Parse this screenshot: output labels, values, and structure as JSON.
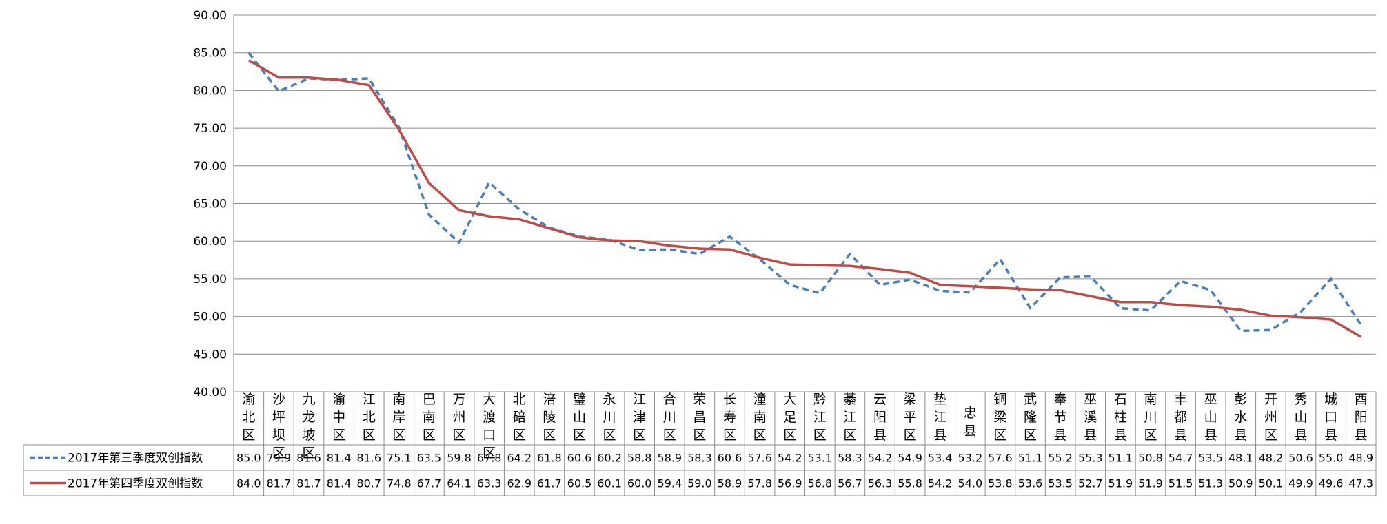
{
  "chart_data": {
    "type": "line",
    "title": "",
    "xlabel": "",
    "ylabel": "",
    "ylim": [
      40,
      90
    ],
    "yticks": [
      "40.00",
      "45.00",
      "50.00",
      "55.00",
      "60.00",
      "65.00",
      "70.00",
      "75.00",
      "80.00",
      "85.00",
      "90.00"
    ],
    "grid": true,
    "categories": [
      "渝北区",
      "沙坪坝区",
      "九龙坡区",
      "渝中区",
      "江北区",
      "南岸区",
      "巴南区",
      "万州区",
      "大渡口区",
      "北碚区",
      "涪陵区",
      "璧山区",
      "永川区",
      "江津区",
      "合川区",
      "荣昌区",
      "长寿区",
      "潼南区",
      "大足区",
      "黔江区",
      "綦江区",
      "云阳县",
      "梁平区",
      "垫江县",
      "忠县",
      "铜梁区",
      "武隆区",
      "奉节县",
      "巫溪县",
      "石柱县",
      "南川区",
      "丰都县",
      "巫山县",
      "彭水县",
      "开州区",
      "秀山县",
      "城口县",
      "酉阳县"
    ],
    "series": [
      {
        "name": "2017年第三季度双创指数",
        "color": "#4a7ebb",
        "style": "dashed",
        "values": [
          85.0,
          79.9,
          81.6,
          81.4,
          81.6,
          75.1,
          63.5,
          59.8,
          67.8,
          64.2,
          61.8,
          60.6,
          60.2,
          58.8,
          58.9,
          58.3,
          60.6,
          57.6,
          54.2,
          53.1,
          58.3,
          54.2,
          54.9,
          53.4,
          53.2,
          57.6,
          51.1,
          55.2,
          55.3,
          51.1,
          50.8,
          54.7,
          53.5,
          48.1,
          48.2,
          50.6,
          55.0,
          48.9
        ],
        "labels": [
          "85.0",
          "79.9",
          "81.6",
          "81.4",
          "81.6",
          "75.1",
          "63.5",
          "59.8",
          "67.8",
          "64.2",
          "61.8",
          "60.6",
          "60.2",
          "58.8",
          "58.9",
          "58.3",
          "60.6",
          "57.6",
          "54.2",
          "53.1",
          "58.3",
          "54.2",
          "54.9",
          "53.4",
          "53.2",
          "57.6",
          "51.1",
          "55.2",
          "55.3",
          "51.1",
          "50.8",
          "54.7",
          "53.5",
          "48.1",
          "48.2",
          "50.6",
          "55.0",
          "48.9"
        ]
      },
      {
        "name": "2017年第四季度双创指数",
        "color": "#be4b48",
        "style": "solid",
        "values": [
          84.0,
          81.7,
          81.7,
          81.4,
          80.7,
          74.8,
          67.7,
          64.1,
          63.3,
          62.9,
          61.7,
          60.5,
          60.1,
          60.0,
          59.4,
          59.0,
          58.9,
          57.8,
          56.9,
          56.8,
          56.7,
          56.3,
          55.8,
          54.2,
          54.0,
          53.8,
          53.6,
          53.5,
          52.7,
          51.9,
          51.9,
          51.5,
          51.3,
          50.9,
          50.1,
          49.9,
          49.6,
          47.3
        ],
        "labels": [
          "84.0",
          "81.7",
          "81.7",
          "81.4",
          "80.7",
          "74.8",
          "67.7",
          "64.1",
          "63.3",
          "62.9",
          "61.7",
          "60.5",
          "60.1",
          "60.0",
          "59.4",
          "59.0",
          "58.9",
          "57.8",
          "56.9",
          "56.8",
          "56.7",
          "56.3",
          "55.8",
          "54.2",
          "54.0",
          "53.8",
          "53.6",
          "53.5",
          "52.7",
          "51.9",
          "51.9",
          "51.5",
          "51.3",
          "50.9",
          "50.1",
          "49.9",
          "49.6",
          "47.3"
        ]
      }
    ]
  }
}
